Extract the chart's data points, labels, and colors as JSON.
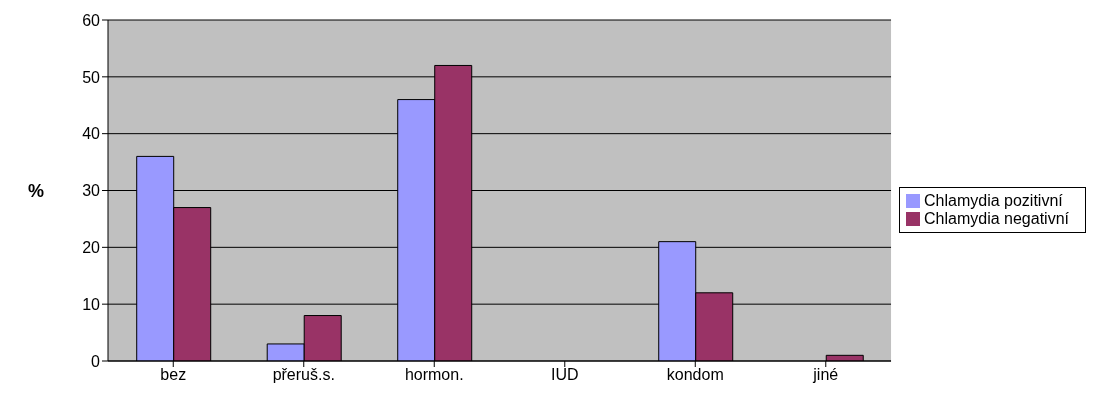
{
  "chart_data": {
    "type": "bar",
    "ylabel": "%",
    "categories": [
      "bez",
      "přeruš.s.",
      "hormon.",
      "IUD",
      "kondom",
      "jiné"
    ],
    "series": [
      {
        "name": "Chlamydia pozitivní",
        "color": "#9999ff",
        "values": [
          36,
          3,
          46,
          0,
          21,
          0
        ]
      },
      {
        "name": "Chlamydia negativní",
        "color": "#993366",
        "values": [
          27,
          8,
          52,
          0,
          12,
          1
        ]
      }
    ],
    "ylim": [
      0,
      60
    ],
    "yticks": [
      0,
      10,
      20,
      30,
      40,
      50,
      60
    ],
    "grid": "y",
    "legend": "right"
  }
}
